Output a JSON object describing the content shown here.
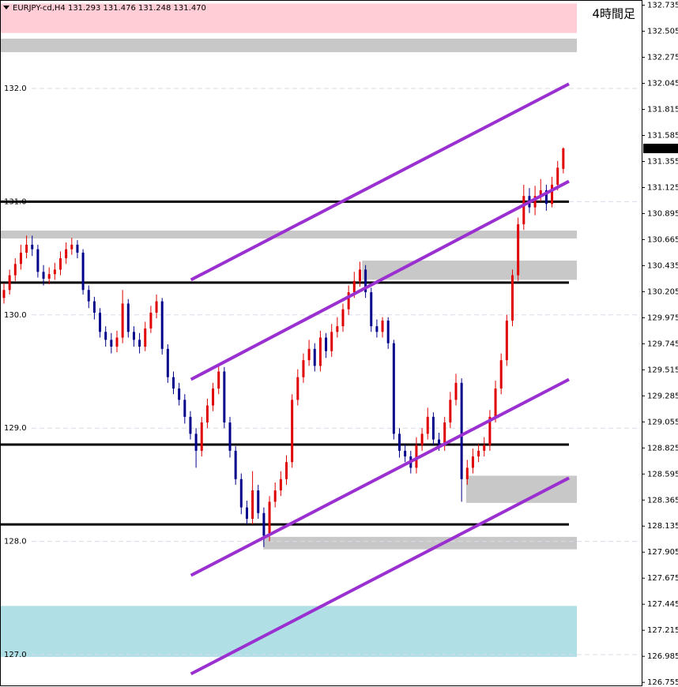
{
  "chart_data": {
    "type": "candlestick",
    "header": "EURJPY-cd,H4  131.293 131.476 131.248 131.470",
    "timeframe_label": "4時間足",
    "ylim": [
      126.728,
      132.781
    ],
    "yticks": [
      132.735,
      132.505,
      132.275,
      132.045,
      131.815,
      131.585,
      131.355,
      131.125,
      130.895,
      130.665,
      130.435,
      130.205,
      129.975,
      129.745,
      129.515,
      129.285,
      129.055,
      128.825,
      128.595,
      128.365,
      128.135,
      127.905,
      127.675,
      127.445,
      127.215,
      126.985,
      126.755
    ],
    "grid_levels": [
      {
        "value": 132,
        "label": "132.0"
      },
      {
        "value": 131,
        "label": "131.0"
      },
      {
        "value": 130,
        "label": "130.0"
      },
      {
        "value": 129,
        "label": "129.0"
      },
      {
        "value": 128,
        "label": "128.0"
      },
      {
        "value": 127,
        "label": "127.0"
      }
    ],
    "price_marker": {
      "value": 131.47,
      "label": "131.470"
    },
    "up_color": "#e00000",
    "down_color": "#00008b",
    "open": [
      130.15,
      130.22,
      130.35,
      130.45,
      130.55,
      130.62,
      130.58,
      130.38,
      130.32,
      130.36,
      130.4,
      130.5,
      130.58,
      130.62,
      130.55,
      130.22,
      130.12,
      130.02,
      129.85,
      129.78,
      129.72,
      129.8,
      130.1,
      129.85,
      129.78,
      129.72,
      129.88,
      130.02,
      130.12,
      129.7,
      129.45,
      129.35,
      129.25,
      129.1,
      128.95,
      128.8,
      129.05,
      129.2,
      129.35,
      129.5,
      129.05,
      128.8,
      128.55,
      128.3,
      128.2,
      128.45,
      128.25,
      128.05,
      128.35,
      128.45,
      128.55,
      128.7,
      129.25,
      129.45,
      129.6,
      129.7,
      129.55,
      129.8,
      129.68,
      129.85,
      129.9,
      130.05,
      130.2,
      130.3,
      130.4,
      130.2,
      129.9,
      129.85,
      129.95,
      129.75,
      128.95,
      128.8,
      128.75,
      128.65,
      128.85,
      128.95,
      129.1,
      128.9,
      128.85,
      129.05,
      129.25,
      129.4,
      128.55,
      128.65,
      128.75,
      128.8,
      128.85,
      129.1,
      129.35,
      129.6,
      129.95,
      130.35,
      130.8,
      131.05,
      130.95,
      131.05,
      131.1,
      130.98,
      131.15,
      131.29
    ],
    "high": [
      130.28,
      130.4,
      130.5,
      130.62,
      130.7,
      130.7,
      130.62,
      130.44,
      130.42,
      130.46,
      130.56,
      130.64,
      130.68,
      130.66,
      130.58,
      130.26,
      130.16,
      130.06,
      129.9,
      129.84,
      129.86,
      130.22,
      130.14,
      129.9,
      129.84,
      129.94,
      130.08,
      130.18,
      130.15,
      129.74,
      129.5,
      129.4,
      129.3,
      129.15,
      129.0,
      129.1,
      129.26,
      129.4,
      129.56,
      129.54,
      129.1,
      128.84,
      128.6,
      128.36,
      128.62,
      128.5,
      128.3,
      128.4,
      128.52,
      128.62,
      128.76,
      129.3,
      129.52,
      129.66,
      129.78,
      129.75,
      129.86,
      129.84,
      129.92,
      129.98,
      130.1,
      130.26,
      130.38,
      130.47,
      130.44,
      130.24,
      129.96,
      129.98,
      129.98,
      129.78,
      129.0,
      128.86,
      128.8,
      128.92,
      129.0,
      129.18,
      129.14,
      128.96,
      129.1,
      129.32,
      129.48,
      129.44,
      128.72,
      128.82,
      128.86,
      128.92,
      129.16,
      129.42,
      129.66,
      130.0,
      130.4,
      130.86,
      131.15,
      131.12,
      131.14,
      131.2,
      131.15,
      131.22,
      131.36,
      131.48
    ],
    "low": [
      130.1,
      130.18,
      130.3,
      130.4,
      130.5,
      130.52,
      130.33,
      130.26,
      130.27,
      130.31,
      130.35,
      130.45,
      130.53,
      130.5,
      130.18,
      130.06,
      129.96,
      129.8,
      129.72,
      129.66,
      129.67,
      129.75,
      129.8,
      129.72,
      129.66,
      129.68,
      129.84,
      129.97,
      129.65,
      129.4,
      129.3,
      129.2,
      129.04,
      128.9,
      128.65,
      128.75,
      129.0,
      129.15,
      129.3,
      129.0,
      128.74,
      128.5,
      128.24,
      128.15,
      128.15,
      128.2,
      127.95,
      128.0,
      128.3,
      128.4,
      128.5,
      128.65,
      129.2,
      129.4,
      129.55,
      129.5,
      129.5,
      129.62,
      129.63,
      129.8,
      129.85,
      130.0,
      130.15,
      130.25,
      130.15,
      129.85,
      129.8,
      129.8,
      129.7,
      128.9,
      128.74,
      128.7,
      128.6,
      128.6,
      128.8,
      128.9,
      128.85,
      128.8,
      128.8,
      129.0,
      129.2,
      128.35,
      128.5,
      128.6,
      128.7,
      128.75,
      128.8,
      129.05,
      129.3,
      129.55,
      129.9,
      130.3,
      130.75,
      130.9,
      130.88,
      131.0,
      130.92,
      130.95,
      131.1,
      131.25
    ],
    "close": [
      130.22,
      130.35,
      130.45,
      130.55,
      130.62,
      130.58,
      130.38,
      130.32,
      130.36,
      130.4,
      130.5,
      130.58,
      130.62,
      130.55,
      130.22,
      130.12,
      130.02,
      129.85,
      129.78,
      129.72,
      129.8,
      130.1,
      129.85,
      129.78,
      129.72,
      129.88,
      130.02,
      130.12,
      129.7,
      129.45,
      129.35,
      129.25,
      129.1,
      128.95,
      128.8,
      129.05,
      129.2,
      129.35,
      129.5,
      129.05,
      128.8,
      128.55,
      128.3,
      128.2,
      128.45,
      128.25,
      128.05,
      128.35,
      128.45,
      128.55,
      128.7,
      129.25,
      129.45,
      129.6,
      129.7,
      129.55,
      129.8,
      129.68,
      129.85,
      129.9,
      130.05,
      130.2,
      130.3,
      130.4,
      130.2,
      129.9,
      129.85,
      129.95,
      129.75,
      128.95,
      128.8,
      128.75,
      128.65,
      128.85,
      128.95,
      129.1,
      128.9,
      128.85,
      129.05,
      129.25,
      129.4,
      128.55,
      128.65,
      128.75,
      128.8,
      128.85,
      129.1,
      129.35,
      129.6,
      129.95,
      130.35,
      130.8,
      131.05,
      130.95,
      131.05,
      131.1,
      130.98,
      131.15,
      131.3,
      131.47
    ],
    "zones": [
      {
        "low": 132.49,
        "high": 132.75,
        "color": "#ffcdd6"
      },
      {
        "low": 132.32,
        "high": 132.44,
        "color": "#c8c8c8"
      },
      {
        "low": 130.675,
        "high": 130.745,
        "color": "#c8c8c8"
      },
      {
        "low": 130.31,
        "high": 130.48,
        "from": 63.4,
        "color": "#c8c8c8"
      },
      {
        "low": 128.34,
        "high": 128.58,
        "from": 81.8,
        "color": "#c8c8c8"
      },
      {
        "low": 127.93,
        "high": 128.04,
        "from": 45.9,
        "color": "#c8c8c8"
      },
      {
        "low": 126.98,
        "high": 127.43,
        "color": "#b0e0e6"
      }
    ],
    "levels": [
      131.0,
      130.285,
      128.855,
      128.15
    ],
    "level_color": "#000000",
    "channel_color": "#9b30d0",
    "channels": [
      {
        "x": [
          33.1,
          100
        ],
        "y": [
          130.31,
          132.04
        ]
      },
      {
        "x": [
          33.1,
          100
        ],
        "y": [
          129.43,
          131.18
        ]
      },
      {
        "x": [
          33.1,
          100
        ],
        "y": [
          127.7,
          129.43
        ]
      },
      {
        "x": [
          33.1,
          100
        ],
        "y": [
          126.83,
          128.56
        ]
      }
    ]
  }
}
